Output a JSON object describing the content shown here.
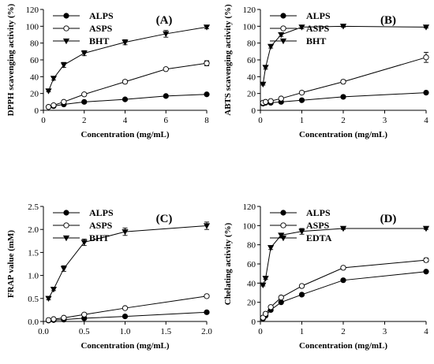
{
  "chart_data": [
    {
      "type": "line",
      "panel_label": "(A)",
      "xlabel": "Concentration (mg/mL)",
      "ylabel": "DPPH scavenging activity (%)",
      "xlim": [
        0,
        8
      ],
      "ylim": [
        0,
        120
      ],
      "xticks": [
        0,
        2,
        4,
        6,
        8
      ],
      "yticks": [
        0,
        20,
        40,
        60,
        80,
        100,
        120
      ],
      "legend_position": "top-left",
      "series": [
        {
          "name": "ALPS",
          "marker": "filled-circle",
          "x": [
            0.25,
            0.5,
            1,
            2,
            4,
            6,
            8
          ],
          "y": [
            4,
            5,
            7,
            10,
            13,
            17,
            19
          ],
          "err": [
            0,
            0,
            0,
            1,
            1,
            1,
            1
          ]
        },
        {
          "name": "ASPS",
          "marker": "open-circle",
          "x": [
            0.25,
            0.5,
            1,
            2,
            4,
            6,
            8
          ],
          "y": [
            4,
            6,
            10,
            19,
            34,
            49,
            56
          ],
          "err": [
            0,
            0,
            1,
            1,
            2,
            1,
            3
          ]
        },
        {
          "name": "BHT",
          "marker": "filled-triangle-down",
          "x": [
            0.25,
            0.5,
            1,
            2,
            4,
            6,
            8
          ],
          "y": [
            23,
            38,
            54,
            68,
            81,
            91,
            99
          ],
          "err": [
            1,
            2,
            3,
            3,
            3,
            4,
            2
          ]
        }
      ]
    },
    {
      "type": "line",
      "panel_label": "(B)",
      "xlabel": "Concentration (mg/mL)",
      "ylabel": "ABTS scavenging activity (%)",
      "xlim": [
        0,
        4
      ],
      "ylim": [
        0,
        120
      ],
      "xticks": [
        0,
        1,
        2,
        3,
        4
      ],
      "yticks": [
        0,
        20,
        40,
        60,
        80,
        100,
        120
      ],
      "legend_position": "top-left",
      "series": [
        {
          "name": "ALPS",
          "marker": "filled-circle",
          "x": [
            0.0625,
            0.125,
            0.25,
            0.5,
            1,
            2,
            4
          ],
          "y": [
            8,
            9,
            9,
            10,
            12,
            16,
            21
          ],
          "err": [
            0,
            0,
            0,
            1,
            1,
            1,
            1
          ]
        },
        {
          "name": "ASPS",
          "marker": "open-circle",
          "x": [
            0.0625,
            0.125,
            0.25,
            0.5,
            1,
            2,
            4
          ],
          "y": [
            9,
            10,
            11,
            14,
            21,
            34,
            63
          ],
          "err": [
            0,
            0,
            1,
            1,
            1,
            2,
            6
          ]
        },
        {
          "name": "BHT",
          "marker": "filled-triangle-down",
          "x": [
            0.0625,
            0.125,
            0.25,
            0.5,
            1,
            2,
            4
          ],
          "y": [
            31,
            51,
            76,
            90,
            99,
            100,
            99
          ],
          "err": [
            1,
            2,
            2,
            2,
            2,
            1,
            1
          ]
        }
      ]
    },
    {
      "type": "line",
      "panel_label": "(C)",
      "xlabel": "Concentration (mg/mL)",
      "ylabel": "FRAP value (mM)",
      "xlim": [
        0,
        2
      ],
      "ylim": [
        0,
        2.5
      ],
      "xticks": [
        "0.0",
        "0.5",
        "1.0",
        "1.5",
        "2.0"
      ],
      "yticks": [
        "0.0",
        "0.5",
        "1.0",
        "1.5",
        "2.0",
        "2.5"
      ],
      "legend_position": "top-left",
      "series": [
        {
          "name": "ALPS",
          "marker": "filled-circle",
          "x": [
            0.0625,
            0.125,
            0.25,
            0.5,
            1,
            2
          ],
          "y": [
            0.02,
            0.03,
            0.04,
            0.07,
            0.11,
            0.2
          ],
          "err": [
            0,
            0,
            0,
            0,
            0,
            0
          ]
        },
        {
          "name": "ASPS",
          "marker": "open-circle",
          "x": [
            0.0625,
            0.125,
            0.25,
            0.5,
            1,
            2
          ],
          "y": [
            0.03,
            0.05,
            0.08,
            0.15,
            0.29,
            0.55
          ],
          "err": [
            0,
            0,
            0,
            0,
            0.01,
            0.01
          ]
        },
        {
          "name": "BHT",
          "marker": "filled-triangle-down",
          "x": [
            0.0625,
            0.125,
            0.25,
            0.5,
            1,
            2
          ],
          "y": [
            0.5,
            0.7,
            1.15,
            1.72,
            1.95,
            2.08
          ],
          "err": [
            0.03,
            0.03,
            0.06,
            0.07,
            0.08,
            0.08
          ]
        }
      ]
    },
    {
      "type": "line",
      "panel_label": "(D)",
      "xlabel": "Concentration (mg/mL)",
      "ylabel": "Chelating activity (%)",
      "xlim": [
        0,
        4
      ],
      "ylim": [
        0,
        120
      ],
      "xticks": [
        0,
        1,
        2,
        3,
        4
      ],
      "yticks": [
        0,
        20,
        40,
        60,
        80,
        100,
        120
      ],
      "legend_position": "top-left",
      "series": [
        {
          "name": "ALPS",
          "marker": "filled-circle",
          "x": [
            0.0625,
            0.125,
            0.25,
            0.5,
            1,
            2,
            4
          ],
          "y": [
            3,
            6,
            12,
            20,
            28,
            43,
            52
          ],
          "err": [
            0,
            0,
            1,
            1,
            1,
            1,
            1
          ]
        },
        {
          "name": "ASPS",
          "marker": "open-circle",
          "x": [
            0.0625,
            0.125,
            0.25,
            0.5,
            1,
            2,
            4
          ],
          "y": [
            4,
            8,
            15,
            25,
            37,
            56,
            64
          ],
          "err": [
            0,
            0,
            1,
            1,
            1,
            1,
            2
          ]
        },
        {
          "name": "EDTA",
          "marker": "filled-triangle-down",
          "x": [
            0.0625,
            0.125,
            0.25,
            0.5,
            1,
            2,
            4
          ],
          "y": [
            38,
            45,
            77,
            90,
            94,
            97,
            97
          ],
          "err": [
            1,
            1,
            2,
            2,
            3,
            1,
            1
          ]
        }
      ]
    }
  ]
}
